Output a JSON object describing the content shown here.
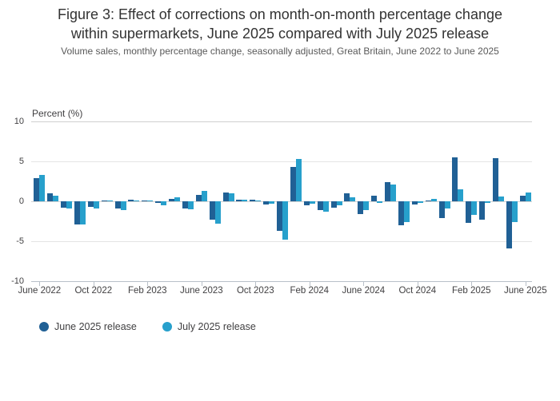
{
  "title": "Figure 3: Effect of corrections on month-on-month percentage change within supermarkets, June 2025 compared with July 2025 release",
  "subtitle": "Volume sales, monthly percentage change, seasonally adjusted, Great Britain, June 2022 to June 2025",
  "colors": {
    "series_dark": "#206095",
    "series_light": "#27a0cc"
  },
  "legend": {
    "items": [
      {
        "label": "June 2025 release",
        "color": "#206095"
      },
      {
        "label": "July 2025 release",
        "color": "#27a0cc"
      }
    ]
  },
  "chart_data": {
    "type": "bar",
    "title": "Figure 3: Effect of corrections on month-on-month percentage change within supermarkets, June 2025 compared with July 2025 release",
    "subtitle": "Volume sales, monthly percentage change, seasonally adjusted, Great Britain, June 2022 to June 2025",
    "ylabel": "Percent (%)",
    "xlabel": "",
    "ylim": [
      -10,
      10
    ],
    "yticks": [
      10,
      5,
      0,
      -5,
      -10
    ],
    "grid": "horizontal",
    "legend_position": "bottom-left",
    "xtick_labels": [
      "June 2022",
      "Oct 2022",
      "Feb 2023",
      "June 2023",
      "Oct 2023",
      "Feb 2024",
      "June 2024",
      "Oct 2024",
      "Feb 2025",
      "June 2025"
    ],
    "categories": [
      "June 2022",
      "July 2022",
      "Aug 2022",
      "Sep 2022",
      "Oct 2022",
      "Nov 2022",
      "Dec 2022",
      "Jan 2023",
      "Feb 2023",
      "Mar 2023",
      "Apr 2023",
      "May 2023",
      "June 2023",
      "July 2023",
      "Aug 2023",
      "Sep 2023",
      "Oct 2023",
      "Nov 2023",
      "Dec 2023",
      "Jan 2024",
      "Feb 2024",
      "Mar 2024",
      "Apr 2024",
      "May 2024",
      "June 2024",
      "July 2024",
      "Aug 2024",
      "Sep 2024",
      "Oct 2024",
      "Nov 2024",
      "Dec 2024",
      "Jan 2025",
      "Feb 2025",
      "Mar 2025",
      "Apr 2025",
      "May 2025",
      "June 2025"
    ],
    "series": [
      {
        "name": "June 2025 release",
        "color": "#206095",
        "values": [
          2.9,
          1.0,
          -0.8,
          -2.85,
          -0.65,
          0.05,
          -0.9,
          0.25,
          0.05,
          -0.15,
          0.35,
          -0.9,
          0.8,
          -2.3,
          1.15,
          0.2,
          0.2,
          -0.4,
          -3.7,
          4.3,
          -0.5,
          -1.05,
          -0.8,
          1.0,
          -1.55,
          0.75,
          2.45,
          -3.0,
          -0.35,
          0.1,
          -2.05,
          5.5,
          -2.65,
          -2.3,
          5.45,
          -5.9,
          0.75
        ]
      },
      {
        "name": "July 2025 release",
        "color": "#27a0cc",
        "values": [
          3.3,
          0.7,
          -0.85,
          -2.9,
          -0.9,
          0.15,
          -1.05,
          0.15,
          0.1,
          -0.45,
          0.55,
          -0.95,
          1.3,
          -2.75,
          1.05,
          0.25,
          0.1,
          -0.3,
          -4.8,
          5.35,
          -0.25,
          -1.25,
          -0.5,
          0.5,
          -1.05,
          -0.15,
          2.15,
          -2.6,
          -0.2,
          0.3,
          -0.9,
          1.55,
          -1.65,
          -0.15,
          0.65,
          -2.55,
          1.1
        ]
      }
    ]
  }
}
